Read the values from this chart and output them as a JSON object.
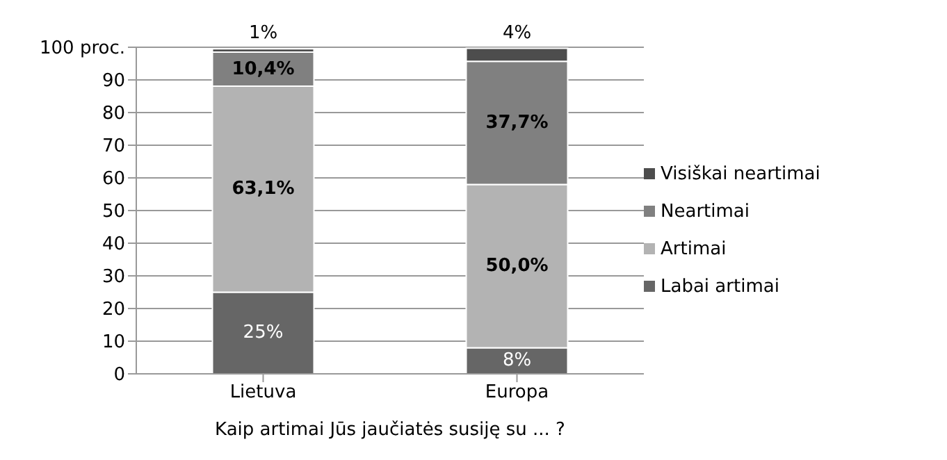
{
  "chart_data": {
    "type": "bar",
    "stacked": true,
    "xlabel": "Kaip artimai Jūs jaučiatės susiję su ... ?",
    "categories": [
      "Lietuva",
      "Europa"
    ],
    "series": [
      {
        "name": "Labai artimai",
        "color": "#666666",
        "values": [
          25,
          8
        ],
        "value_labels": [
          "25%",
          "8%"
        ]
      },
      {
        "name": "Artimai",
        "color": "#b3b3b3",
        "values": [
          63.1,
          50.0
        ],
        "value_labels": [
          "63,1%",
          "50,0%"
        ]
      },
      {
        "name": "Neartimai",
        "color": "#808080",
        "values": [
          10.4,
          37.7
        ],
        "value_labels": [
          "10,4%",
          "37,7%"
        ]
      },
      {
        "name": "Visiškai neartimai",
        "color": "#4d4d4d",
        "values": [
          1,
          4
        ],
        "value_labels": [
          "1%",
          "4%"
        ]
      }
    ],
    "ylim": [
      0,
      100
    ],
    "yticks": [
      0,
      10,
      20,
      30,
      40,
      50,
      60,
      70,
      80,
      90,
      {
        "value": 100,
        "label": "100 proc."
      }
    ],
    "grid": "y",
    "legend": "right"
  }
}
